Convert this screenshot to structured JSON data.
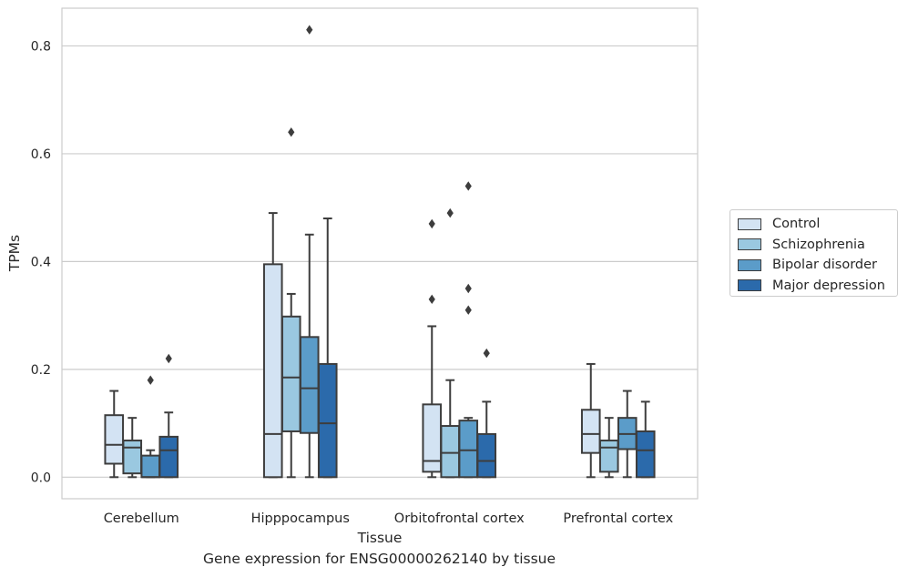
{
  "footer": {
    "title": "Gene expression for ENSG00000262140 by tissue"
  },
  "chart_data": {
    "type": "box",
    "xlabel": "Tissue",
    "ylabel": "TPMs",
    "ylim": [
      -0.04,
      0.87
    ],
    "yticks": [
      "0.0",
      "0.2",
      "0.4",
      "0.6",
      "0.8"
    ],
    "grid": "horizontal",
    "legend_position": "right",
    "categories": [
      "Cerebellum",
      "Hipppocampus",
      "Orbitofrontal cortex",
      "Prefrontal cortex"
    ],
    "series": [
      {
        "name": "Control",
        "color": "#d3e3f3",
        "boxes": [
          {
            "whislo": 0.0,
            "q1": 0.025,
            "med": 0.06,
            "q3": 0.115,
            "whishi": 0.16,
            "fliers": []
          },
          {
            "whislo": 0.0,
            "q1": 0.0,
            "med": 0.08,
            "q3": 0.395,
            "whishi": 0.49,
            "fliers": []
          },
          {
            "whislo": 0.0,
            "q1": 0.01,
            "med": 0.03,
            "q3": 0.135,
            "whishi": 0.28,
            "fliers": [
              0.33,
              0.47
            ]
          },
          {
            "whislo": 0.0,
            "q1": 0.045,
            "med": 0.08,
            "q3": 0.125,
            "whishi": 0.21,
            "fliers": []
          }
        ]
      },
      {
        "name": "Schizophrenia",
        "color": "#9ac8e0",
        "boxes": [
          {
            "whislo": 0.0,
            "q1": 0.007,
            "med": 0.055,
            "q3": 0.068,
            "whishi": 0.11,
            "fliers": []
          },
          {
            "whislo": 0.0,
            "q1": 0.085,
            "med": 0.185,
            "q3": 0.298,
            "whishi": 0.34,
            "fliers": [
              0.64
            ]
          },
          {
            "whislo": 0.0,
            "q1": 0.0,
            "med": 0.045,
            "q3": 0.095,
            "whishi": 0.18,
            "fliers": [
              0.49
            ]
          },
          {
            "whislo": 0.0,
            "q1": 0.01,
            "med": 0.055,
            "q3": 0.068,
            "whishi": 0.11,
            "fliers": []
          }
        ]
      },
      {
        "name": "Bipolar disorder",
        "color": "#5b9cc9",
        "boxes": [
          {
            "whislo": 0.0,
            "q1": 0.0,
            "med": 0.0,
            "q3": 0.04,
            "whishi": 0.05,
            "fliers": [
              0.18
            ]
          },
          {
            "whislo": 0.0,
            "q1": 0.082,
            "med": 0.165,
            "q3": 0.26,
            "whishi": 0.45,
            "fliers": [
              0.83
            ]
          },
          {
            "whislo": 0.0,
            "q1": 0.0,
            "med": 0.05,
            "q3": 0.105,
            "whishi": 0.11,
            "fliers": [
              0.31,
              0.35,
              0.54
            ]
          },
          {
            "whislo": 0.0,
            "q1": 0.052,
            "med": 0.08,
            "q3": 0.11,
            "whishi": 0.16,
            "fliers": []
          }
        ]
      },
      {
        "name": "Major depression",
        "color": "#2b6aab",
        "boxes": [
          {
            "whislo": 0.0,
            "q1": 0.0,
            "med": 0.05,
            "q3": 0.075,
            "whishi": 0.12,
            "fliers": [
              0.22
            ]
          },
          {
            "whislo": 0.0,
            "q1": 0.0,
            "med": 0.1,
            "q3": 0.21,
            "whishi": 0.48,
            "fliers": []
          },
          {
            "whislo": 0.0,
            "q1": 0.0,
            "med": 0.03,
            "q3": 0.08,
            "whishi": 0.14,
            "fliers": [
              0.23
            ]
          },
          {
            "whislo": 0.0,
            "q1": 0.0,
            "med": 0.05,
            "q3": 0.085,
            "whishi": 0.14,
            "fliers": []
          }
        ]
      }
    ]
  }
}
